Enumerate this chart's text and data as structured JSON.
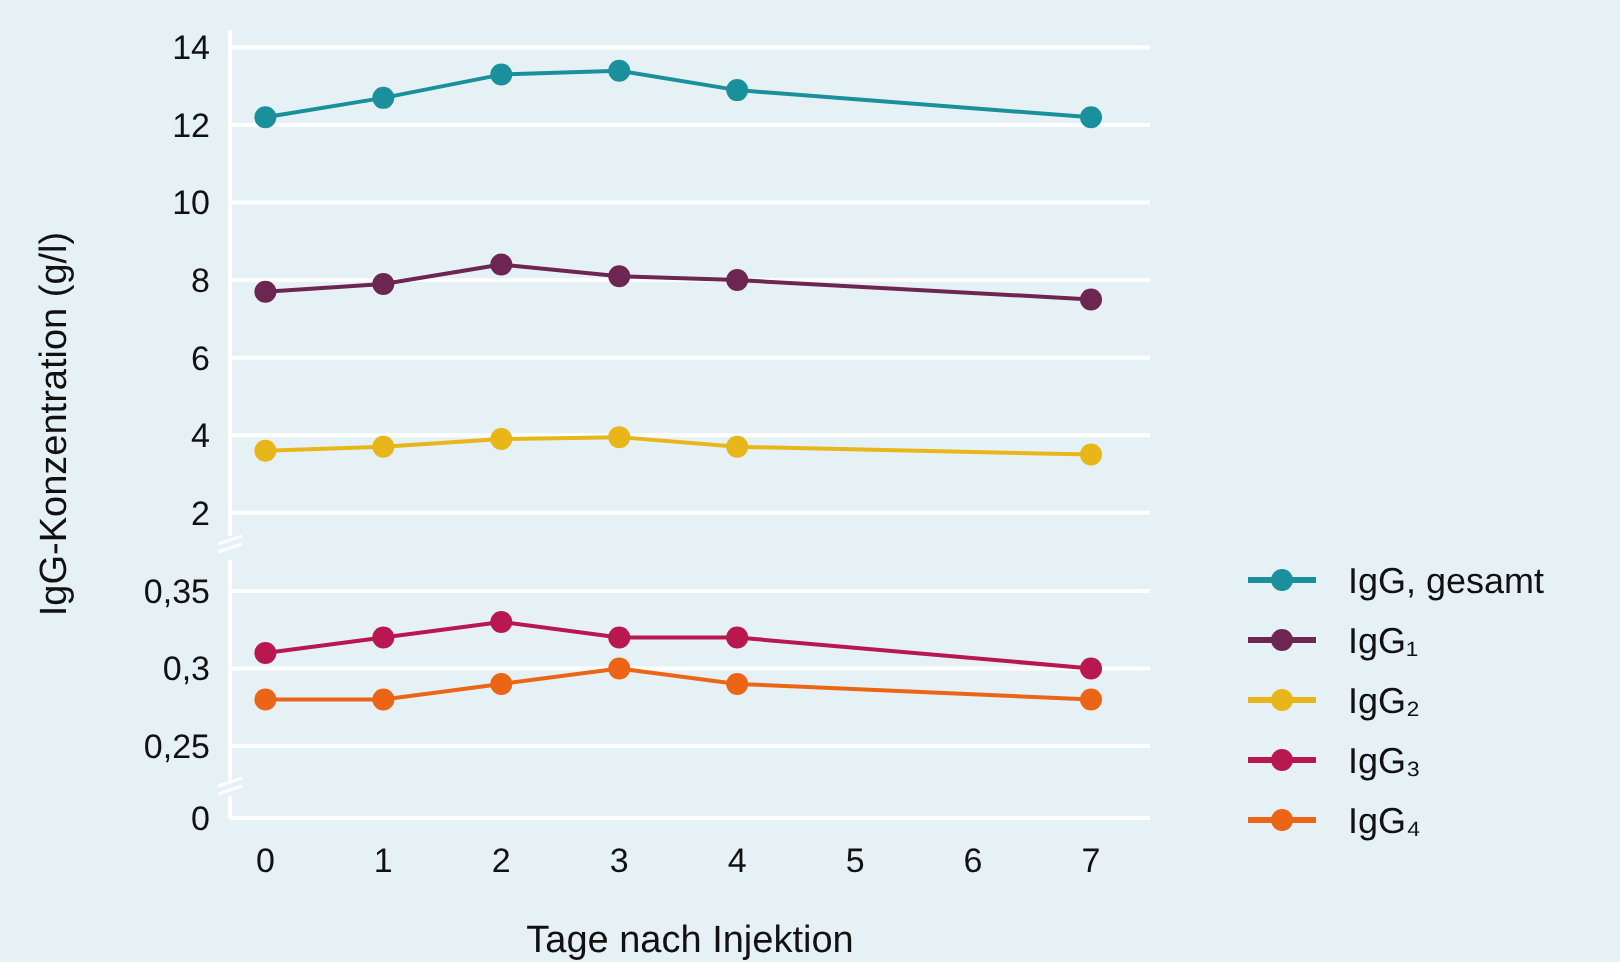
{
  "chart_data": [
    {
      "type": "line",
      "ylabel": "IgG-Konzentration (g/l)",
      "xlim": [
        -0.3,
        7.5
      ],
      "ylim": [
        1.4,
        14.45
      ],
      "yticks": [
        2,
        4,
        6,
        8,
        10,
        12,
        14
      ],
      "grid": "y",
      "tick_labels": "y",
      "marker": "circle",
      "legend": "right",
      "series": [
        {
          "name": "IgG, gesamt",
          "color": "#1a909c",
          "x": [
            0,
            1,
            2,
            3,
            4,
            7
          ],
          "values": [
            12.2,
            12.7,
            13.3,
            13.4,
            12.9,
            12.2
          ]
        },
        {
          "name": "IgG₁",
          "color": "#6d2552",
          "x": [
            0,
            1,
            2,
            3,
            4,
            7
          ],
          "values": [
            7.7,
            7.9,
            8.4,
            8.1,
            8.0,
            7.5
          ]
        },
        {
          "name": "IgG₂",
          "color": "#e8b618",
          "x": [
            0,
            1,
            2,
            3,
            4,
            7
          ],
          "values": [
            3.6,
            3.7,
            3.9,
            3.95,
            3.7,
            3.5
          ]
        }
      ]
    },
    {
      "type": "line",
      "xlabel": "Tage nach Injektion",
      "annotations": [
        "0"
      ],
      "xlim": [
        -0.3,
        7.5
      ],
      "xticks": [
        0,
        1,
        2,
        3,
        4,
        5,
        6,
        7
      ],
      "ylim": [
        0.228,
        0.37
      ],
      "yticks": [
        {
          "value": 0.25,
          "label": "0,25"
        },
        {
          "value": 0.3,
          "label": "0,3"
        },
        {
          "value": 0.35,
          "label": "0,35"
        }
      ],
      "grid": "y",
      "marker": "circle",
      "legend": "right",
      "series": [
        {
          "name": "IgG₃",
          "color": "#b8174f",
          "x": [
            0,
            1,
            2,
            3,
            4,
            7
          ],
          "values": [
            0.31,
            0.32,
            0.33,
            0.32,
            0.32,
            0.3
          ]
        },
        {
          "name": "IgG₄",
          "color": "#ec6516",
          "x": [
            0,
            1,
            2,
            3,
            4,
            7
          ],
          "values": [
            0.28,
            0.28,
            0.29,
            0.3,
            0.29,
            0.28
          ]
        }
      ]
    }
  ]
}
